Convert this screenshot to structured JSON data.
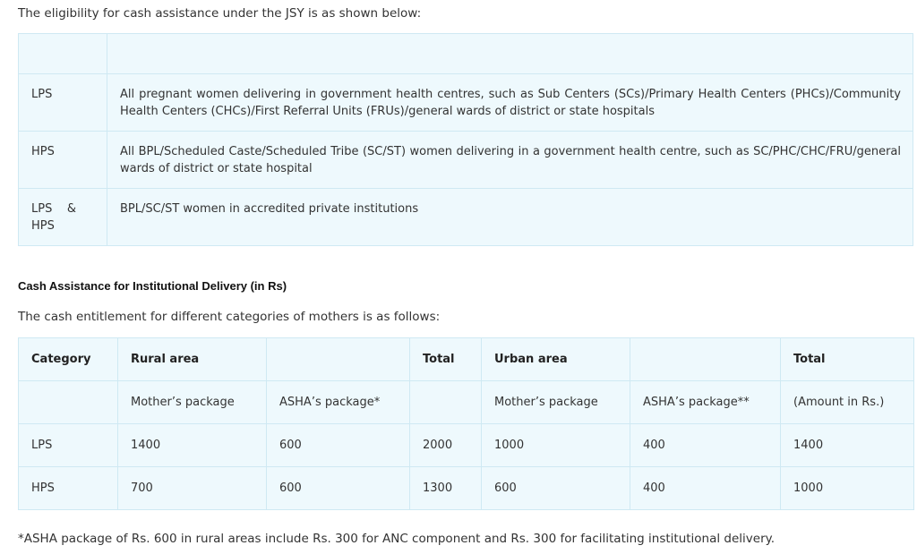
{
  "intro": "The eligibility for cash assistance under the JSY is as shown below:",
  "eligibility": {
    "header": [
      "",
      ""
    ],
    "rows": [
      {
        "category": "LPS",
        "description": "All pregnant women delivering in government health centres, such as Sub Centers (SCs)/Primary Health Centers (PHCs)/Community Health Centers (CHCs)/First Referral Units (FRUs)/general wards of district or state hospitals"
      },
      {
        "category": "HPS",
        "description": "All BPL/Scheduled Caste/Scheduled Tribe (SC/ST) women delivering in a government health centre, such as SC/PHC/CHC/FRU/general wards of district or state hospital"
      },
      {
        "category_a": "LPS",
        "category_amp": "&",
        "category_b": "HPS",
        "description": "BPL/SC/ST women in accredited private institutions"
      }
    ]
  },
  "section_heading": "Cash Assistance for Institutional Delivery (in Rs)",
  "para2": "The cash entitlement for different categories of mothers is as follows:",
  "cash_table": {
    "header": [
      "Category",
      "Rural area",
      "",
      "Total",
      "Urban area",
      "",
      "Total"
    ],
    "subheader": [
      "",
      "Mother’s package",
      "ASHA’s package*",
      "",
      "Mother’s package",
      "ASHA’s package**",
      "(Amount in Rs.)"
    ],
    "rows": [
      [
        "LPS",
        "1400",
        "600",
        "2000",
        "1000",
        "400",
        "1400"
      ],
      [
        "HPS",
        "700",
        "600",
        "1300",
        "600",
        "400",
        "1000"
      ]
    ]
  },
  "footnote": "*ASHA package of Rs. 600 in rural areas include Rs. 300 for ANC component and Rs. 300 for facilitating institutional delivery."
}
